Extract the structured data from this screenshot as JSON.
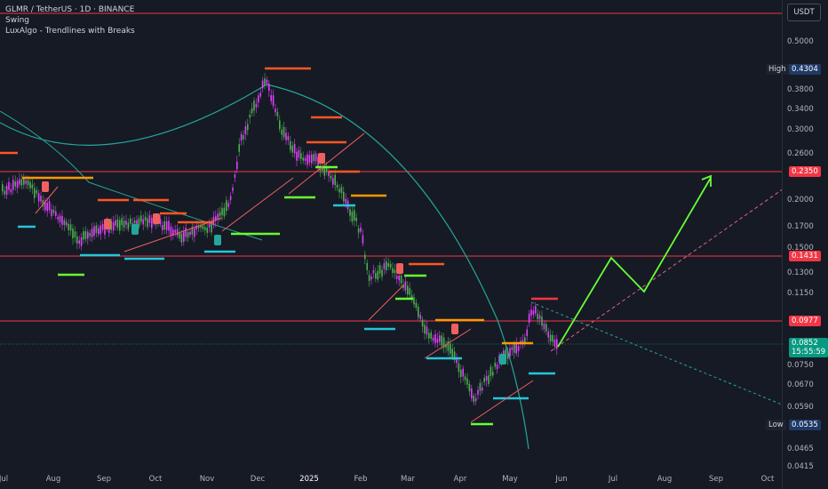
{
  "legend": {
    "symbol": "GLMR / TetherUS · 1D · BINANCE",
    "indicator1": "Swing",
    "indicator2": "LuxAlgo - Trendlines with Breaks"
  },
  "currency_button": "USDT",
  "price_ticks": [
    "0.5000",
    "0.3800",
    "0.3400",
    "0.3000",
    "0.2600",
    "0.2000",
    "0.1700",
    "0.1500",
    "0.1300",
    "0.1150",
    "0.0750",
    "0.0670",
    "0.0590",
    "0.0465",
    "0.0415"
  ],
  "levels": {
    "high_label": "High",
    "high_value": "0.4304",
    "r1": "0.2350",
    "r2": "0.1431",
    "r3": "0.0977",
    "current": "0.0852",
    "countdown": "15:55:59",
    "low_label": "Low",
    "low_value": "0.0535"
  },
  "time_ticks": [
    "Jul",
    "Aug",
    "Sep",
    "Oct",
    "Nov",
    "Dec",
    "2025",
    "Feb",
    "Mar",
    "Apr",
    "May",
    "Jun",
    "Jul",
    "Aug",
    "Sep",
    "Oct"
  ],
  "colors": {
    "bg": "#161a25",
    "resistance": "#f23645",
    "up": "#4caf50",
    "down": "#e040fb",
    "arrow": "#66ff33",
    "curve": "#26a69a",
    "current": "#089981"
  }
}
